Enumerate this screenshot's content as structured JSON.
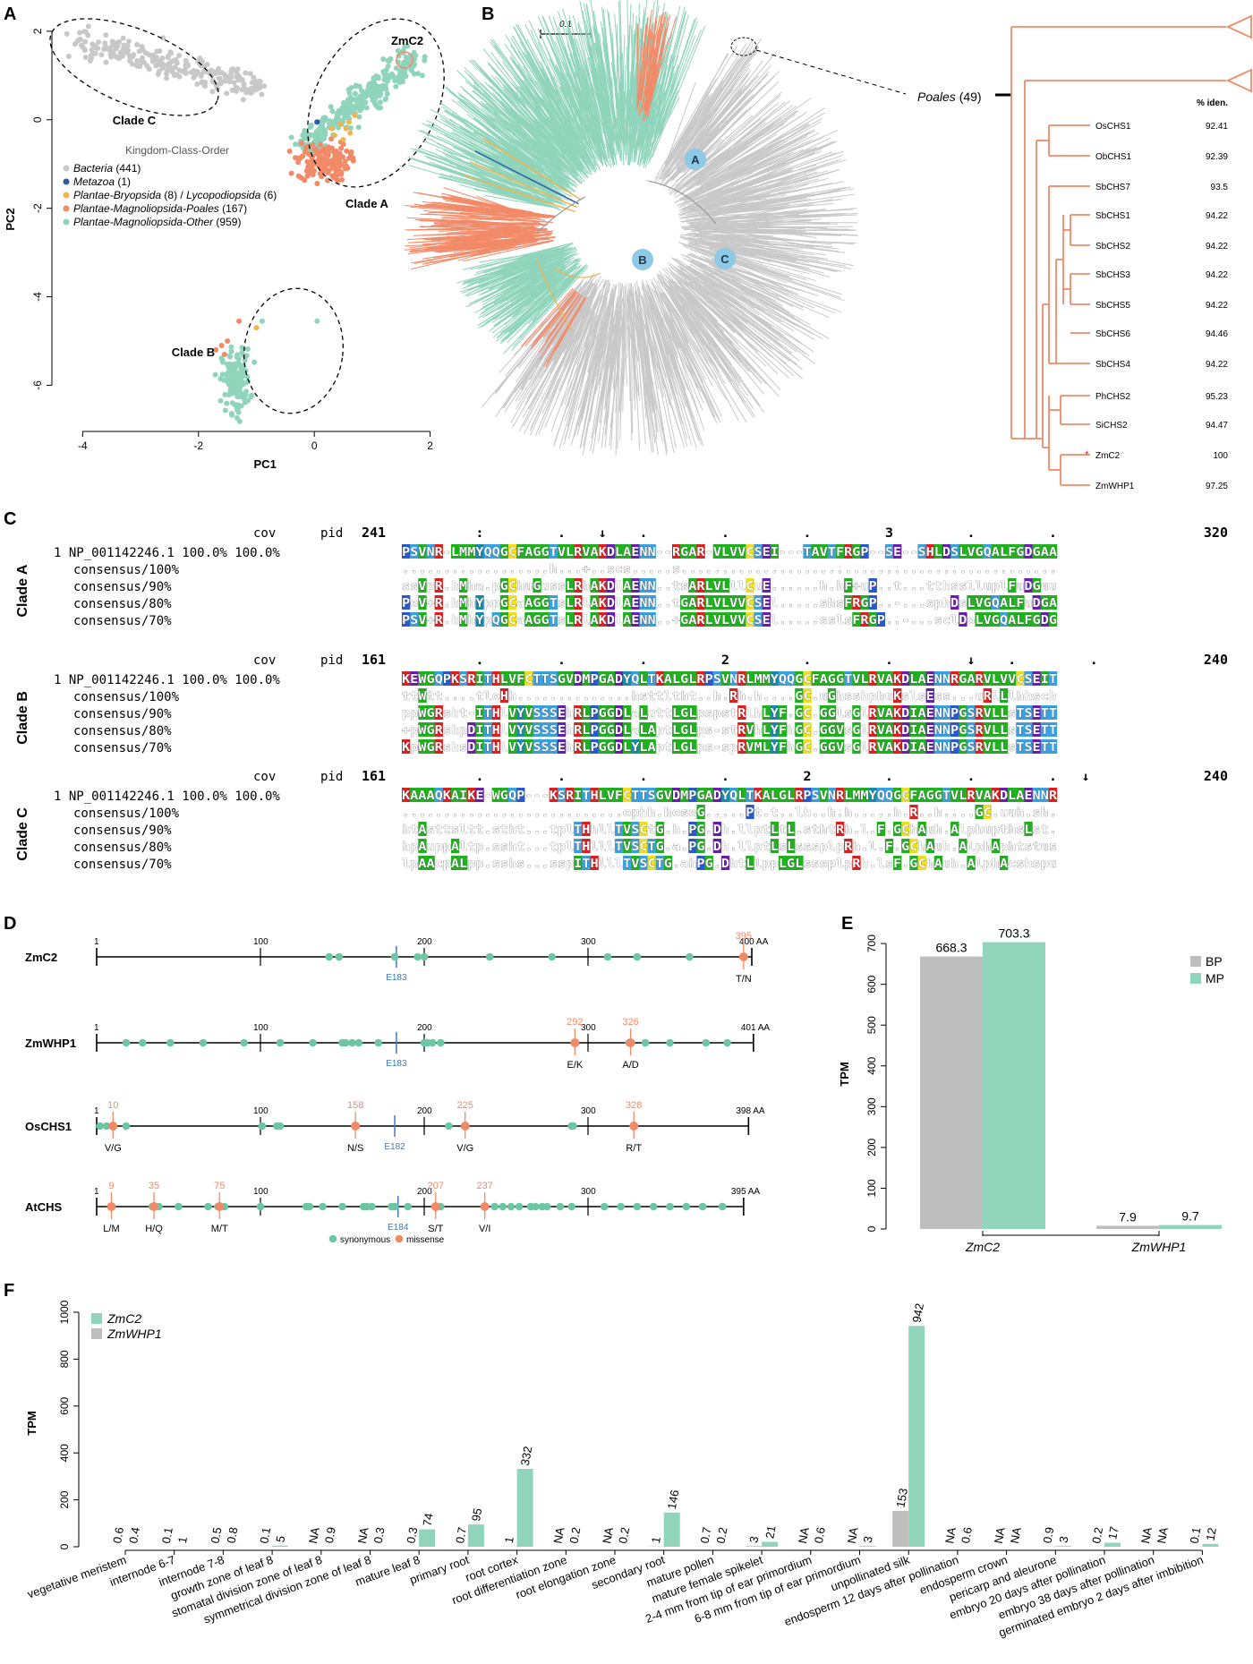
{
  "panels": {
    "a": "A",
    "b": "B",
    "c": "C",
    "d": "D",
    "e": "E",
    "f": "F"
  },
  "panel_a": {
    "chart_data": {
      "type": "scatter",
      "xlabel": "PC1",
      "ylabel": "PC2",
      "xlim": [
        -4.5,
        2.3
      ],
      "ylim": [
        -6.8,
        2.2
      ],
      "xticks": [
        "-4",
        "-2",
        "0",
        "2"
      ],
      "yticks": [
        "2",
        "0",
        "-2",
        "-4",
        "-6"
      ],
      "legend_title": "Kingdom-Class-Order",
      "legend": [
        {
          "name": "Bacteria",
          "count": "(441)",
          "color": "#c8c8c8"
        },
        {
          "name": "Metazoa",
          "count": "(1)",
          "color": "#2a5ca8"
        },
        {
          "name": "Plantae-Bryopsida",
          "count": "(8) / ",
          "name2": "Lycopodiopsida",
          "count2": "(6)",
          "color": "#f0b450"
        },
        {
          "name": "Plantae-Magnoliopsida-Poales",
          "count": "(167)",
          "color": "#f28a68"
        },
        {
          "name": "Plantae-Magnoliopsida-Other",
          "count": "(959)",
          "color": "#8fd4bb"
        }
      ],
      "clusters": [
        {
          "label": "Clade C",
          "color": "#c8c8c8",
          "cx": -2.6,
          "cy": 1.2,
          "sx": 1.0,
          "sy": 0.35,
          "n": 260
        },
        {
          "label": "Clade A",
          "color": "#8fd4bb",
          "cx": 0.9,
          "cy": 0.7,
          "sx": 0.45,
          "sy": 0.6,
          "n": 300
        },
        {
          "label": "Clade A poales",
          "color": "#f28a68",
          "cx": 0.2,
          "cy": -0.9,
          "sx": 0.25,
          "sy": 0.25,
          "n": 140
        },
        {
          "label": "Clade B",
          "color": "#8fd4bb",
          "cx": -1.4,
          "cy": -5.8,
          "sx": 0.15,
          "sy": 0.5,
          "n": 160
        }
      ],
      "clade_labels": [
        "Clade C",
        "Clade A",
        "Clade B"
      ],
      "highlight": "ZmC2"
    }
  },
  "panel_b": {
    "scale": "0.1",
    "poales": "Poales",
    "poales_count": "(49)",
    "iden_header": "% iden.",
    "nodes": [
      "A",
      "B",
      "C"
    ],
    "leaves": [
      {
        "name": "OsCHS1",
        "iden": "92.41"
      },
      {
        "name": "ObCHS1",
        "iden": "92.39"
      },
      {
        "name": "SbCHS7",
        "iden": "93.5"
      },
      {
        "name": "SbCHS1",
        "iden": "94.22"
      },
      {
        "name": "SbCHS2",
        "iden": "94.22"
      },
      {
        "name": "SbCHS3",
        "iden": "94.22"
      },
      {
        "name": "SbCHS5",
        "iden": "94.22"
      },
      {
        "name": "SbCHS6",
        "iden": "94.46"
      },
      {
        "name": "SbCHS4",
        "iden": "94.22"
      },
      {
        "name": "PhCHS2",
        "iden": "95.23"
      },
      {
        "name": "SiCHS2",
        "iden": "94.47"
      },
      {
        "name": "ZmC2",
        "iden": "100"
      },
      {
        "name": "ZmWHP1",
        "iden": "97.25"
      }
    ]
  },
  "panel_c": {
    "header": {
      "cov": "cov",
      "pid": "pid"
    },
    "blocks": [
      {
        "clade": "Clade A",
        "start": "241",
        "end": "320",
        "marks": "         :         .    ↓    .         .         .         3         .         .",
        "rows": [
          {
            "label": "1 NP_001142246.1 100.0% 100.0%",
            "seq": "PSVNR-LMMYQQGCFAGGTVLRVAKDLAENN--RGAR-VLVVCSEI---TAVTFRGP--SE--SHLDSLVGQALFGDGAAA"
          },
          {
            "label": "consensus/100%",
            "seq": "..................h...+..scs.....s..............................................."
          },
          {
            "label": "consensus/90%",
            "seq": "ssVpR.hMha.pGChuGussLRhAKDlAENN..tsARLVLllCuE......h.hF+uP..t...tthsslluplFuDGuuA"
          },
          {
            "label": "consensus/80%",
            "seq": "PoV+R.hMhYppGCaAGGTsLRlAKDlAENN..tGARLVLVVCSEl.....shsFRGP..-...sphDsLVGQALFuDGAuA"
          },
          {
            "label": "consensus/70%",
            "seq": "PSV+R.hMhYpQGCaAGGTsLRlAKDlAENN..+GARLVLVVCSEl.....sslsFRGP..-...sclDoLVGQALFGDGAAA"
          }
        ]
      },
      {
        "clade": "Clade B",
        "start": "161",
        "end": "240",
        "marks": "         .         .         .         2         .         .         ↓    .         .",
        "rows": [
          {
            "label": "1 NP_001142246.1 100.0% 100.0%",
            "seq": "KEWGQPKSRITHLVFCTTSGVDMPGADYQLTKALGLRPSVNRLMMYQQGCFAGGTVLRVAKDLAENNRGARVLVVCSEIT"
          },
          {
            "label": "consensus/100%",
            "seq": "ttWtt....tloHh..............hsttltht..h.Rh.h....GC.uGhsshphuKslsEss...uRlLlhhschh"
          },
          {
            "label": "consensus/90%",
            "seq": "ppWGRsht-ITHlVYVSSSEhRLPGGDLaLuttLGLpspstRlhLYF.GC.GGlsGlRVAKDIAENNPGSRVLLsTSETT"
          },
          {
            "label": "consensus/80%",
            "seq": "+pWGRshpDITHlVYVSSSEhRLPGGDLaLAptLGLps-stRVhLYFhGC.GGVsGlRVAKDIAENNPGSRVLLsTSETT"
          },
          {
            "label": "consensus/70%",
            "seq": "KpWGRshsDITHlVYVSSSEhRLPGGDLYLAptLGLps-spRVMLYFhGC.GGVsGlRVAKDIAENNPGSRVLLsTSETT"
          }
        ]
      },
      {
        "clade": "Clade C",
        "start": "161",
        "end": "240",
        "marks": "         .         .         .         .         2         .         .         .   ↓",
        "rows": [
          {
            "label": "1 NP_001142246.1 100.0% 100.0%",
            "seq": "KAAAQKAIKE-WGQP---KSRITHLVFCTTSGVDMPGADYQLTKALGLRPSVNRLMMYQQGCFAGGTVLRVAKDLAENNRG"
          },
          {
            "label": "consensus/100%",
            "seq": "...........................ophh.hosoG.....Pt.t..lh..h.h.....h.R..h....GC.uuh.sh..u..h"
          },
          {
            "label": "consensus/90%",
            "seq": "htAsttsltt.stht...tplTHhllTVSCtG.h.PG.Dh.llptLtL.sthtRh.l.F.GChAuh.AlphupthsLst.t"
          },
          {
            "label": "consensus/80%",
            "seq": "hpAuppAltp.ssht...tplTHlllTVSCTG.a.PG.Dh.llptLsLsssplpRh.l.F.GChAuh.AlphAphtstusst"
          },
          {
            "label": "consensus/70%",
            "seq": "lpAAcpALpp.sshs...sspITHlllTVSCTG.ahPG.DhtLlppLGLsssplpRh.lsF.GChAuh.AlphAcshspusPs"
          }
        ]
      }
    ]
  },
  "panel_d": {
    "genes": [
      {
        "name": "ZmC2",
        "length": 400,
        "end_label": "400 AA",
        "syn": [
          142,
          148,
          182,
          196,
          200,
          240,
          278,
          312,
          330,
          362
        ],
        "mis": [
          {
            "pos": 395,
            "label": "395",
            "change": "T/N"
          }
        ],
        "e_mark": {
          "pos": 183,
          "label": "E183"
        }
      },
      {
        "name": "ZmWHP1",
        "length": 401,
        "end_label": "401 AA",
        "syn": [
          18,
          28,
          45,
          65,
          90,
          112,
          132,
          150,
          152,
          156,
          160,
          172,
          200,
          202,
          205,
          210,
          325,
          335,
          350,
          372,
          385
        ],
        "mis": [
          {
            "pos": 292,
            "label": "292",
            "change": "E/K"
          },
          {
            "pos": 326,
            "label": "326",
            "change": "A/D"
          }
        ],
        "e_mark": {
          "pos": 183,
          "label": "E183"
        }
      },
      {
        "name": "OsCHS1",
        "length": 398,
        "end_label": "398 AA",
        "syn": [
          2,
          6,
          18,
          101,
          110,
          112,
          215,
          290,
          290,
          291
        ],
        "mis": [
          {
            "pos": 10,
            "label": "10",
            "change": "V/G"
          },
          {
            "pos": 158,
            "label": "158",
            "change": "N/S"
          },
          {
            "pos": 225,
            "label": "225",
            "change": "V/G"
          },
          {
            "pos": 328,
            "label": "328",
            "change": "R/T"
          }
        ],
        "e_mark": {
          "pos": 182,
          "label": "E182"
        }
      },
      {
        "name": "AtCHS",
        "length": 395,
        "end_label": "395 AA",
        "syn": [
          34,
          38,
          50,
          68,
          74,
          78,
          100,
          128,
          130,
          138,
          150,
          163,
          165,
          168,
          180,
          182,
          190,
          210,
          243,
          248,
          253,
          258,
          265,
          268,
          272,
          275,
          283,
          290,
          310,
          320,
          330,
          340,
          350,
          360,
          370,
          382
        ],
        "mis": [
          {
            "pos": 9,
            "label": "9",
            "change": "L/M"
          },
          {
            "pos": 35,
            "label": "35",
            "change": "H/Q"
          },
          {
            "pos": 75,
            "label": "75",
            "change": "M/T"
          },
          {
            "pos": 207,
            "label": "207",
            "change": "S/T"
          },
          {
            "pos": 237,
            "label": "237",
            "change": "V/I"
          }
        ],
        "e_mark": {
          "pos": 184,
          "label": "E184"
        }
      }
    ],
    "ticks": [
      "1",
      "100",
      "200",
      "300"
    ],
    "legend": {
      "syn": "synonymous",
      "mis": "missense"
    }
  },
  "panel_e": {
    "chart_data": {
      "type": "bar",
      "categories": [
        "ZmC2",
        "ZmWHP1"
      ],
      "series": [
        {
          "name": "BP",
          "values": [
            668.3,
            7.9
          ],
          "labels": [
            "668.3",
            "7.9"
          ],
          "color": "#bebebe"
        },
        {
          "name": "MP",
          "values": [
            703.3,
            9.7
          ],
          "labels": [
            "703.3",
            "9.7"
          ],
          "color": "#8fd4bb"
        }
      ],
      "ylabel": "TPM",
      "ylim": [
        0,
        720
      ],
      "yticks": [
        "0",
        "100",
        "200",
        "300",
        "400",
        "500",
        "600",
        "700"
      ]
    }
  },
  "panel_f": {
    "chart_data": {
      "type": "bar",
      "ylabel": "TPM",
      "ylim": [
        0,
        1000
      ],
      "yticks": [
        "0",
        "200",
        "400",
        "600",
        "800",
        "1000"
      ],
      "legend": [
        {
          "name": "ZmC2",
          "color": "#8fd4bb"
        },
        {
          "name": "ZmWHP1",
          "color": "#bebebe"
        }
      ],
      "categories": [
        "vegetative meristem",
        "internode 6-7",
        "internode 7-8",
        "growth zone of leaf 8",
        "stomatal division zone of leaf 8",
        "symmetrical division zone of leaf 8",
        "mature leaf 8",
        "primary root",
        "root cortex",
        "root differentiation zone",
        "root elongation zone",
        "secondary root",
        "mature pollen",
        "mature female spikelet",
        "2-4 mm from tip of ear primordium",
        "6-8 mm from tip of ear primordium",
        "unpollinated silk",
        "endosperm 12 days after pollination",
        "endosperm crown",
        "pericarp and aleurone",
        "embryo 20 days after pollination",
        "embryo 38 days after pollination",
        "germinated embryo 2 days after imbibition"
      ],
      "series": [
        {
          "name": "ZmWHP1",
          "values": [
            0.6,
            0.1,
            0.5,
            0.1,
            null,
            null,
            0.3,
            0.7,
            1,
            null,
            null,
            1,
            0.7,
            3,
            null,
            null,
            153,
            null,
            null,
            0.9,
            0.2,
            null,
            0.1
          ],
          "labels": [
            "0.6",
            "0.1",
            "0.5",
            "0.1",
            "NA",
            "NA",
            "0.3",
            "0.7",
            "1",
            "NA",
            "NA",
            "1",
            "0.7",
            "3",
            "NA",
            "NA",
            "153",
            "NA",
            "NA",
            "0.9",
            "0.2",
            "NA",
            "0.1"
          ]
        },
        {
          "name": "ZmC2",
          "values": [
            0.4,
            1,
            0.8,
            5,
            0.9,
            0.3,
            74,
            95,
            332,
            0.2,
            0.2,
            146,
            0.2,
            21,
            0.6,
            3,
            942,
            0.6,
            null,
            3,
            17,
            null,
            12
          ],
          "labels": [
            "0.4",
            "1",
            "0.8",
            "5",
            "0.9",
            "0.3",
            "74",
            "95",
            "332",
            "0.2",
            "0.2",
            "146",
            "0.2",
            "21",
            "0.6",
            "3",
            "942",
            "0.6",
            "NA",
            "3",
            "17",
            "NA",
            "12"
          ]
        }
      ]
    }
  }
}
